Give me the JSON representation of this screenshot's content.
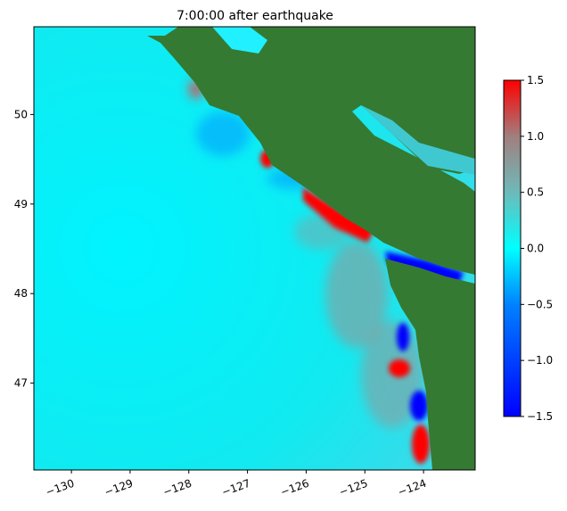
{
  "title": "7:00:00 after earthquake",
  "chart_data": {
    "type": "heatmap",
    "title": "7:00:00 after earthquake",
    "xlabel": "",
    "ylabel": "",
    "xlim": [
      -130.64,
      -123.12
    ],
    "ylim": [
      46.03,
      50.98
    ],
    "x_ticks": [
      -130,
      -129,
      -128,
      -127,
      -126,
      -125,
      -124
    ],
    "x_tick_labels": [
      "−130",
      "−129",
      "−128",
      "−127",
      "−126",
      "−125",
      "−124"
    ],
    "y_ticks": [
      47,
      48,
      49,
      50
    ],
    "y_tick_labels": [
      "47",
      "48",
      "49",
      "50"
    ],
    "colorbar": {
      "range": [
        -1.5,
        1.5
      ],
      "ticks": [
        -1.5,
        -1.0,
        -0.5,
        0.0,
        0.5,
        1.0,
        1.5
      ],
      "tick_labels": [
        "−1.5",
        "−1.0",
        "−0.5",
        "0.0",
        "0.5",
        "1.0",
        "1.5"
      ],
      "colors": [
        "#0000ff",
        "#0080ff",
        "#00ffff",
        "#70b8b8",
        "#a08080",
        "#ff0000"
      ]
    },
    "land_color": "#357a32",
    "water_base_color": "#00ffff"
  }
}
